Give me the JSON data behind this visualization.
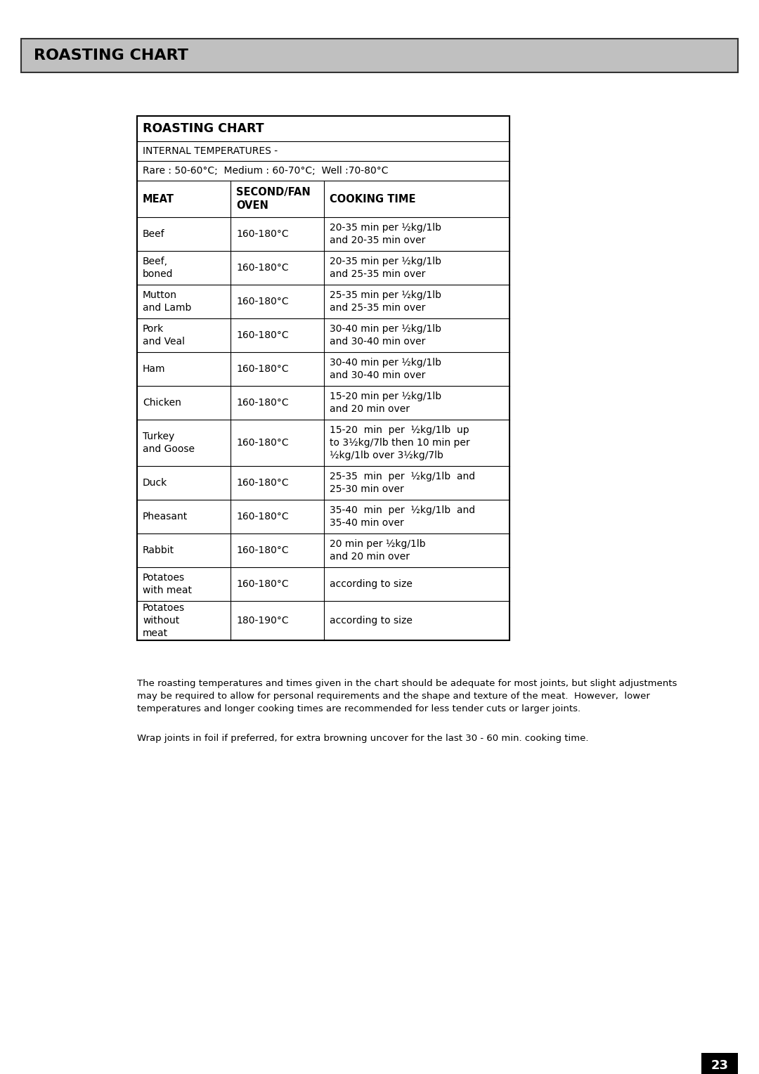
{
  "page_title": "ROASTING CHART",
  "header_bg": "#c0c0c0",
  "table_title": "ROASTING CHART",
  "internal_temp_label": "INTERNAL TEMPERATURES -",
  "internal_temp_values": "Rare : 50-60°C;  Medium : 60-70°C;  Well :70-80°C",
  "col_headers": [
    "MEAT",
    "SECOND/FAN\nOVEN",
    "COOKING TIME"
  ],
  "rows": [
    [
      "Beef",
      "160-180°C",
      "20-35 min per ½kg/1lb\nand 20-35 min over"
    ],
    [
      "Beef,\nboned",
      "160-180°C",
      "20-35 min per ½kg/1lb\nand 25-35 min over"
    ],
    [
      "Mutton\nand Lamb",
      "160-180°C",
      "25-35 min per ½kg/1lb\nand 25-35 min over"
    ],
    [
      "Pork\nand Veal",
      "160-180°C",
      "30-40 min per ½kg/1lb\nand 30-40 min over"
    ],
    [
      "Ham",
      "160-180°C",
      "30-40 min per ½kg/1lb\nand 30-40 min over"
    ],
    [
      "Chicken",
      "160-180°C",
      "15-20 min per ½kg/1lb\nand 20 min over"
    ],
    [
      "Turkey\nand Goose",
      "160-180°C",
      "15-20  min  per  ½kg/1lb  up\nto 3½kg/7lb then 10 min per\n½kg/1lb over 3½kg/7lb"
    ],
    [
      "Duck",
      "160-180°C",
      "25-35  min  per  ½kg/1lb  and\n25-30 min over"
    ],
    [
      "Pheasant",
      "160-180°C",
      "35-40  min  per  ½kg/1lb  and\n35-40 min over"
    ],
    [
      "Rabbit",
      "160-180°C",
      "20 min per ½kg/1lb\nand 20 min over"
    ],
    [
      "Potatoes\nwith meat",
      "160-180°C",
      "according to size"
    ],
    [
      "Potatoes\nwithout\nmeat",
      "180-190°C",
      "according to size"
    ]
  ],
  "footnote1": "The roasting temperatures and times given in the chart should be adequate for most joints, but slight adjustments\nmay be required to allow for personal requirements and the shape and texture of the meat.  However,  lower\ntemperatures and longer cooking times are recommended for less tender cuts or larger joints.",
  "footnote2": "Wrap joints in foil if preferred, for extra browning uncover for the last 30 - 60 min. cooking time.",
  "page_number": "23",
  "bg_color": "#ffffff"
}
